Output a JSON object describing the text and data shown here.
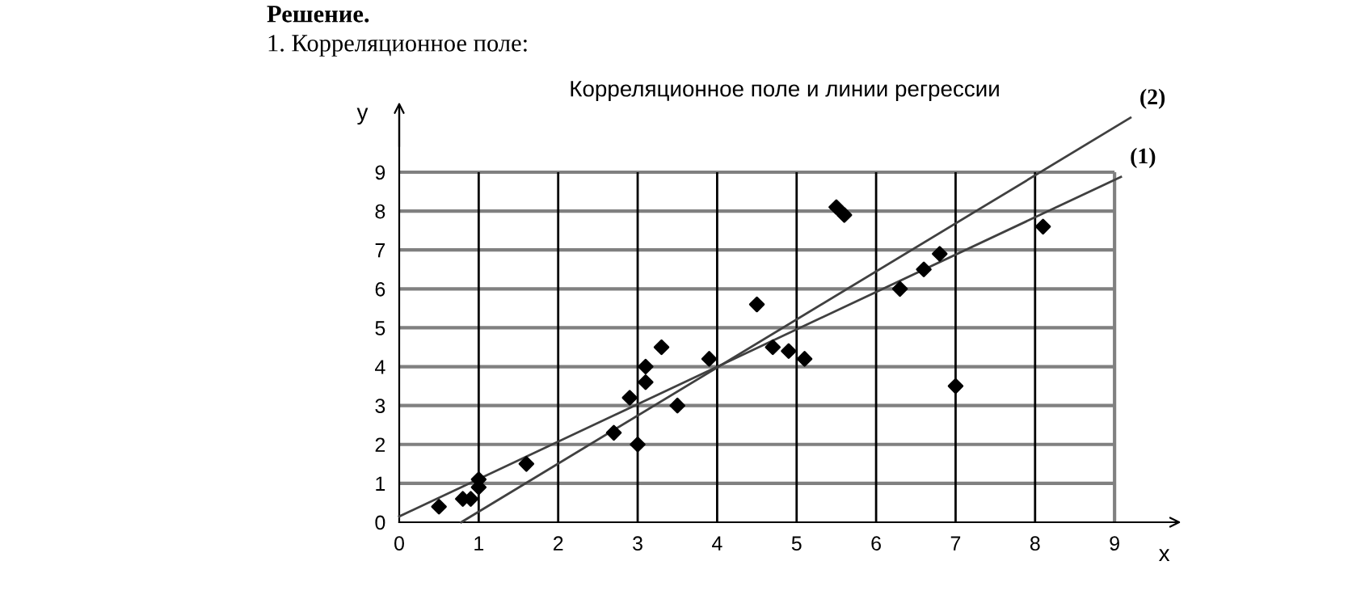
{
  "chart_data": {
    "type": "scatter",
    "title": "Корреляционное поле и линии регрессии",
    "xlabel": "x",
    "ylabel": "y",
    "annotations": [
      "Решение.",
      "1. Корреляционное поле:",
      {
        "text": "(1)",
        "x": 9.08,
        "y": 8.88
      },
      {
        "text": "(2)",
        "x": 9.2,
        "y": 10.4
      }
    ],
    "series": [
      {
        "color": "#000000",
        "marker": "diamond",
        "x": [
          0.5,
          0.8,
          0.9,
          1,
          1,
          1.6,
          2.7,
          2.9,
          3,
          3.1,
          3.1,
          3.3,
          3.5,
          3.9,
          4.5,
          4.7,
          4.9,
          5.1,
          5.5,
          5.6,
          6.3,
          6.6,
          6.8,
          7,
          8.1
        ],
        "values": [
          0.4,
          0.6,
          0.6,
          0.9,
          1.1,
          1.5,
          2.3,
          3.2,
          2,
          3.6,
          4,
          4.5,
          3,
          4.2,
          5.6,
          4.5,
          4.4,
          4.2,
          8.1,
          7.9,
          6,
          6.5,
          6.9,
          3.5,
          7.6
        ]
      },
      {
        "type": "line",
        "color": "#404040",
        "marker": "none",
        "x": [
          0,
          9.08
        ],
        "values": [
          0.15,
          8.88
        ]
      },
      {
        "type": "line",
        "color": "#404040",
        "marker": "none",
        "x": [
          0.78,
          9.2
        ],
        "values": [
          0,
          10.4
        ]
      }
    ],
    "xlim": [
      0,
      9.7
    ],
    "ylim": [
      0,
      10.6
    ],
    "xticks": [
      0,
      1,
      2,
      3,
      4,
      5,
      6,
      7,
      8,
      9
    ],
    "yticks": [
      0,
      1,
      2,
      3,
      4,
      5,
      6,
      7,
      8,
      9
    ],
    "grid": true,
    "legend": false
  }
}
